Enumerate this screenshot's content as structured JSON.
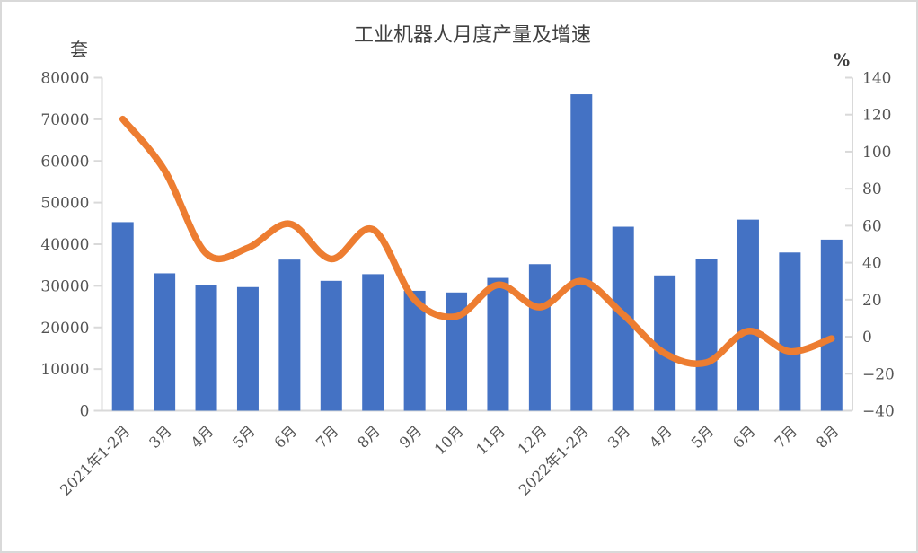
{
  "window": {
    "background_color": "#ffffff",
    "border_color": "#d9d9d9"
  },
  "chart_data": {
    "type": "bar",
    "subtype": "combo-bar-line-dual-axis",
    "title": "工业机器人月度产量及增速",
    "legend": "none",
    "grid": false,
    "categories": [
      "2021年1-2月",
      "3月",
      "4月",
      "5月",
      "6月",
      "7月",
      "8月",
      "9月",
      "10月",
      "11月",
      "12月",
      "2022年1-2月",
      "3月",
      "4月",
      "5月",
      "6月",
      "7月",
      "8月"
    ],
    "series": [
      {
        "name": "月度产量",
        "type": "bar",
        "axis": "left",
        "unit": "套",
        "color": "#4472c4",
        "values": [
          45300,
          33000,
          30200,
          29700,
          36300,
          31200,
          32800,
          28800,
          28400,
          31900,
          35200,
          76000,
          44200,
          32500,
          36400,
          45900,
          38000,
          41100
        ]
      },
      {
        "name": "增速",
        "type": "line",
        "smooth": true,
        "axis": "right",
        "unit": "%",
        "color": "#ed7d31",
        "values": [
          117.6,
          90,
          45,
          48,
          61,
          42,
          58,
          20,
          11,
          28,
          16,
          30,
          12,
          -9,
          -14,
          3,
          -8,
          -1
        ]
      }
    ],
    "left_axis": {
      "label": "套",
      "min": 0,
      "max": 80000,
      "step": 10000,
      "tick_labels": [
        "80000",
        "70000",
        "60000",
        "50000",
        "40000",
        "30000",
        "20000",
        "10000",
        "0"
      ]
    },
    "right_axis": {
      "label": "%",
      "min": -40,
      "max": 140,
      "step": 20,
      "tick_labels": [
        "140",
        "120",
        "100",
        "80",
        "60",
        "40",
        "20",
        "0",
        "−20",
        "−40"
      ]
    },
    "axis_line_color": "#d9d9d9",
    "text_color": "#545454",
    "title_color": "#404040"
  }
}
